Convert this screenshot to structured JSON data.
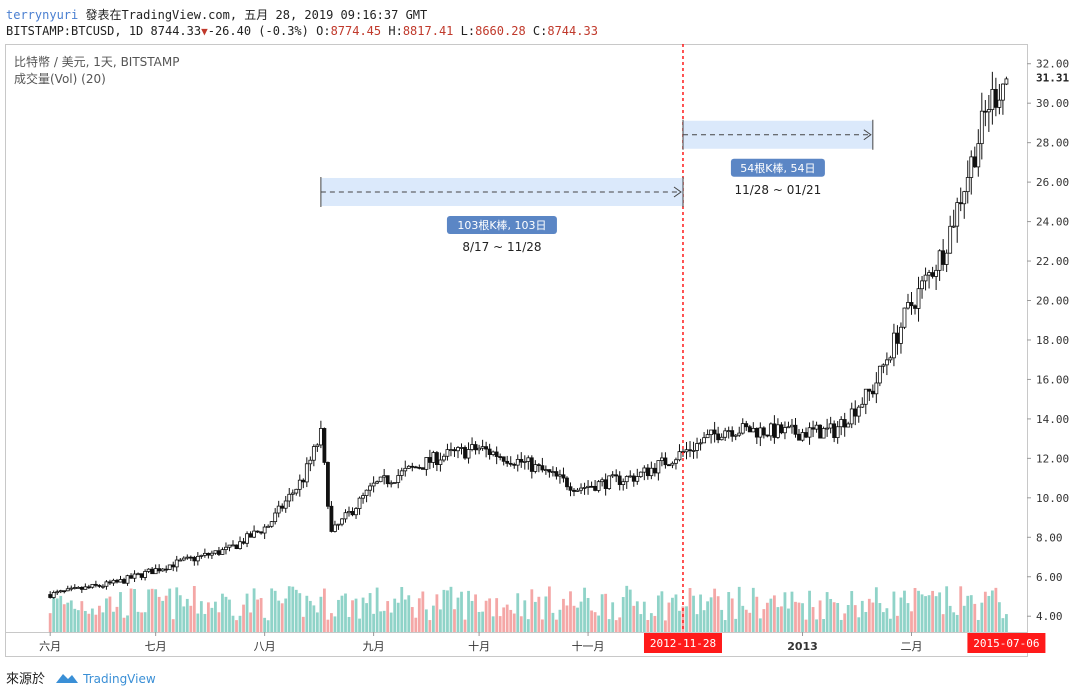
{
  "header": {
    "user": "terrynyuri",
    "published": "發表在TradingView.com, 五月 28, 2019 09:16:37 GMT",
    "symbol": "BITSTAMP:BTCUSD, 1D",
    "last": "8744.33",
    "change": "-26.40 (-0.3%)",
    "o_label": "O:",
    "o": "8774.45",
    "h_label": "H:",
    "h": "8817.41",
    "l_label": "L:",
    "l": "8660.28",
    "c_label": "C:",
    "c": "8744.33"
  },
  "legend": {
    "title": "比特幣 / 美元, 1天, BITSTAMP",
    "volume": "成交量(Vol) (20)"
  },
  "footer": {
    "source": "來源於",
    "brand": "TradingView"
  },
  "colors": {
    "up": "#26a69a",
    "down": "#ef5350",
    "range_fill": "#dbe9fb",
    "badge": "#5b86c5",
    "marker": "#ff1a1a",
    "vol_up": "#8fd3c8",
    "vol_down": "#f4a7a6"
  },
  "chart_data": {
    "type": "candlestick",
    "x_axis": {
      "ticks": [
        "六月",
        "七月",
        "八月",
        "九月",
        "十月",
        "十一月",
        "2012-11-28",
        "2013",
        "二月",
        "2015-07-06"
      ],
      "highlighted": [
        "2012-11-28",
        "2015-07-06"
      ]
    },
    "y_axis": {
      "ticks": [
        "32.00",
        "30.00",
        "28.00",
        "26.00",
        "24.00",
        "22.00",
        "20.00",
        "18.00",
        "16.00",
        "14.00",
        "12.00",
        "10.00",
        "8.00",
        "6.00",
        "4.00"
      ],
      "range": [
        3.2,
        33.0
      ],
      "last_value": "31.31"
    },
    "series_anchors": [
      {
        "date": "2012-06-01",
        "value": 5.1
      },
      {
        "date": "2012-06-20",
        "value": 5.7
      },
      {
        "date": "2012-07-05",
        "value": 6.6
      },
      {
        "date": "2012-07-22",
        "value": 7.4
      },
      {
        "date": "2012-08-02",
        "value": 8.6
      },
      {
        "date": "2012-08-12",
        "value": 11.0
      },
      {
        "date": "2012-08-17",
        "value": 13.2
      },
      {
        "date": "2012-08-20",
        "value": 8.2
      },
      {
        "date": "2012-09-01",
        "value": 10.6
      },
      {
        "date": "2012-09-20",
        "value": 12.1
      },
      {
        "date": "2012-10-01",
        "value": 12.5
      },
      {
        "date": "2012-10-15",
        "value": 11.7
      },
      {
        "date": "2012-10-29",
        "value": 10.5
      },
      {
        "date": "2012-11-15",
        "value": 11.1
      },
      {
        "date": "2012-11-28",
        "value": 12.3
      },
      {
        "date": "2012-12-10",
        "value": 13.5
      },
      {
        "date": "2012-12-30",
        "value": 13.3
      },
      {
        "date": "2013-01-10",
        "value": 13.4
      },
      {
        "date": "2013-01-21",
        "value": 15.5
      },
      {
        "date": "2013-01-31",
        "value": 19.5
      },
      {
        "date": "2013-02-10",
        "value": 22.5
      },
      {
        "date": "2013-02-18",
        "value": 27.0
      },
      {
        "date": "2013-02-23",
        "value": 30.0
      },
      {
        "date": "2013-02-28",
        "value": 31.31
      }
    ],
    "volume_range": [
      0,
      25000
    ],
    "annotations": [
      {
        "badge": "103根K棒, 103日",
        "dates": "8/17 ~ 11/28",
        "bars": 103,
        "start": "2012-08-17",
        "end": "2012-11-28",
        "level": 25.5
      },
      {
        "badge": "54根K棒, 54日",
        "dates": "11/28 ~ 01/21",
        "bars": 54,
        "start": "2012-11-28",
        "end": "2013-01-21",
        "level": 28.4
      }
    ],
    "vertical_marker": "2012-11-28"
  }
}
